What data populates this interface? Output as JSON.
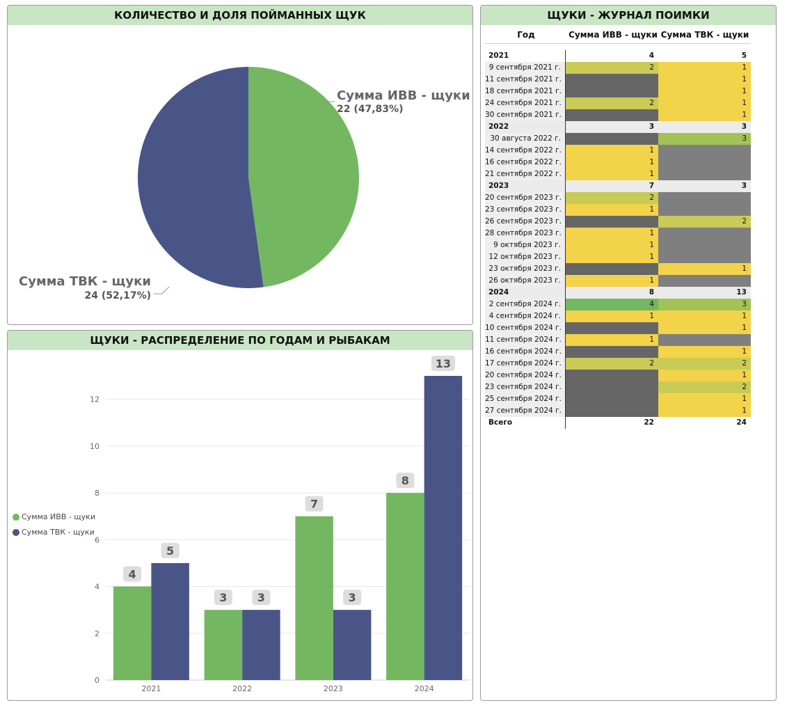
{
  "colors": {
    "ivv": "#73b761",
    "tvk": "#4a5587",
    "header_bg": "#c8e6c4",
    "cell_yellow": "#f3d34a",
    "cell_olive": "#c9cb56",
    "cell_lightgreen": "#a2c256",
    "cell_green": "#73b761",
    "cell_darkgray": "#666666",
    "cell_gray": "#7f7f7f"
  },
  "pie_panel": {
    "title": "КОЛИЧЕСТВО И ДОЛЯ ПОЙМАННЫХ ЩУК",
    "slices": [
      {
        "label": "Сумма ИВВ - щуки",
        "value": 22,
        "detail": "22 (47,83%)"
      },
      {
        "label": "Сумма ТВК - щуки",
        "value": 24,
        "detail": "24 (52,17%)"
      }
    ]
  },
  "bar_panel": {
    "title": "ЩУКИ - РАСПРЕДЕЛЕНИЕ ПО ГОДАМ И РЫБАКАМ",
    "legend": [
      "Сумма ИВВ - щуки",
      "Сумма ТВК - щуки"
    ]
  },
  "chart_data": [
    {
      "type": "pie",
      "title": "КОЛИЧЕСТВО И ДОЛЯ ПОЙМАННЫХ ЩУК",
      "categories": [
        "Сумма ИВВ - щуки",
        "Сумма ТВК - щуки"
      ],
      "values": [
        22,
        24
      ],
      "percent_labels": [
        "47,83%",
        "52,17%"
      ]
    },
    {
      "type": "bar",
      "title": "ЩУКИ - РАСПРЕДЕЛЕНИЕ ПО ГОДАМ И РЫБАКАМ",
      "categories": [
        "2021",
        "2022",
        "2023",
        "2024"
      ],
      "series": [
        {
          "name": "Сумма ИВВ - щуки",
          "values": [
            4,
            3,
            7,
            8
          ]
        },
        {
          "name": "Сумма ТВК - щуки",
          "values": [
            5,
            3,
            3,
            13
          ]
        }
      ],
      "yticks": [
        0,
        2,
        4,
        6,
        8,
        10,
        12
      ],
      "ylim": [
        0,
        13
      ],
      "grid": true,
      "legend": "left"
    }
  ],
  "table_panel": {
    "title": "ЩУКИ - ЖУРНАЛ ПОИМКИ",
    "columns": [
      "Год",
      "Сумма ИВВ - щуки",
      "Сумма ТВК - щуки"
    ],
    "rows": [
      {
        "kind": "year",
        "label": "2021",
        "ivv": "4",
        "tvk": "5"
      },
      {
        "kind": "date",
        "label": "9 сентября 2021 г.",
        "ivv": "2",
        "tvk": "1",
        "ivv_c": "cell_olive",
        "tvk_c": "cell_yellow"
      },
      {
        "kind": "date",
        "label": "11 сентября 2021 г.",
        "ivv": "",
        "tvk": "1",
        "ivv_c": "cell_darkgray",
        "tvk_c": "cell_yellow"
      },
      {
        "kind": "date",
        "label": "18 сентября 2021 г.",
        "ivv": "",
        "tvk": "1",
        "ivv_c": "cell_darkgray",
        "tvk_c": "cell_yellow"
      },
      {
        "kind": "date",
        "label": "24 сентября 2021 г.",
        "ivv": "2",
        "tvk": "1",
        "ivv_c": "cell_olive",
        "tvk_c": "cell_yellow"
      },
      {
        "kind": "date",
        "label": "30 сентября 2021 г.",
        "ivv": "",
        "tvk": "1",
        "ivv_c": "cell_darkgray",
        "tvk_c": "cell_yellow"
      },
      {
        "kind": "year",
        "label": "2022",
        "ivv": "3",
        "tvk": "3"
      },
      {
        "kind": "date",
        "label": "30 августа 2022 г.",
        "ivv": "",
        "tvk": "3",
        "ivv_c": "cell_darkgray",
        "tvk_c": "cell_lightgreen"
      },
      {
        "kind": "date",
        "label": "14 сентября 2022 г.",
        "ivv": "1",
        "tvk": "",
        "ivv_c": "cell_yellow",
        "tvk_c": "cell_gray"
      },
      {
        "kind": "date",
        "label": "16 сентября 2022 г.",
        "ivv": "1",
        "tvk": "",
        "ivv_c": "cell_yellow",
        "tvk_c": "cell_gray"
      },
      {
        "kind": "date",
        "label": "21 сентября 2022 г.",
        "ivv": "1",
        "tvk": "",
        "ivv_c": "cell_yellow",
        "tvk_c": "cell_gray"
      },
      {
        "kind": "year",
        "label": "2023",
        "ivv": "7",
        "tvk": "3"
      },
      {
        "kind": "date",
        "label": "20 сентября 2023 г.",
        "ivv": "2",
        "tvk": "",
        "ivv_c": "cell_olive",
        "tvk_c": "cell_gray"
      },
      {
        "kind": "date",
        "label": "23 сентября 2023 г.",
        "ivv": "1",
        "tvk": "",
        "ivv_c": "cell_yellow",
        "tvk_c": "cell_gray"
      },
      {
        "kind": "date",
        "label": "26 сентября 2023 г.",
        "ivv": "",
        "tvk": "2",
        "ivv_c": "cell_darkgray",
        "tvk_c": "cell_olive"
      },
      {
        "kind": "date",
        "label": "28 сентября 2023 г.",
        "ivv": "1",
        "tvk": "",
        "ivv_c": "cell_yellow",
        "tvk_c": "cell_gray"
      },
      {
        "kind": "date",
        "label": "9 октября 2023 г.",
        "ivv": "1",
        "tvk": "",
        "ivv_c": "cell_yellow",
        "tvk_c": "cell_gray"
      },
      {
        "kind": "date",
        "label": "12 октября 2023 г.",
        "ivv": "1",
        "tvk": "",
        "ivv_c": "cell_yellow",
        "tvk_c": "cell_gray"
      },
      {
        "kind": "date",
        "label": "23 октября 2023 г.",
        "ivv": "",
        "tvk": "1",
        "ivv_c": "cell_darkgray",
        "tvk_c": "cell_yellow"
      },
      {
        "kind": "date",
        "label": "26 октября 2023 г.",
        "ivv": "1",
        "tvk": "",
        "ivv_c": "cell_yellow",
        "tvk_c": "cell_gray"
      },
      {
        "kind": "year",
        "label": "2024",
        "ivv": "8",
        "tvk": "13"
      },
      {
        "kind": "date",
        "label": "2 сентября 2024 г.",
        "ivv": "4",
        "tvk": "3",
        "ivv_c": "cell_green",
        "tvk_c": "cell_lightgreen"
      },
      {
        "kind": "date",
        "label": "4 сентября 2024 г.",
        "ivv": "1",
        "tvk": "1",
        "ivv_c": "cell_yellow",
        "tvk_c": "cell_yellow"
      },
      {
        "kind": "date",
        "label": "10 сентября 2024 г.",
        "ivv": "",
        "tvk": "1",
        "ivv_c": "cell_darkgray",
        "tvk_c": "cell_yellow"
      },
      {
        "kind": "date",
        "label": "11 сентября 2024 г.",
        "ivv": "1",
        "tvk": "",
        "ivv_c": "cell_yellow",
        "tvk_c": "cell_gray"
      },
      {
        "kind": "date",
        "label": "16 сентября 2024 г.",
        "ivv": "",
        "tvk": "1",
        "ivv_c": "cell_darkgray",
        "tvk_c": "cell_yellow"
      },
      {
        "kind": "date",
        "label": "17 сентября 2024 г.",
        "ivv": "2",
        "tvk": "2",
        "ivv_c": "cell_olive",
        "tvk_c": "cell_olive"
      },
      {
        "kind": "date",
        "label": "20 сентября 2024 г.",
        "ivv": "",
        "tvk": "1",
        "ivv_c": "cell_darkgray",
        "tvk_c": "cell_yellow"
      },
      {
        "kind": "date",
        "label": "23 сентября 2024 г.",
        "ivv": "",
        "tvk": "2",
        "ivv_c": "cell_darkgray",
        "tvk_c": "cell_olive"
      },
      {
        "kind": "date",
        "label": "25 сентября 2024 г.",
        "ivv": "",
        "tvk": "1",
        "ivv_c": "cell_darkgray",
        "tvk_c": "cell_yellow"
      },
      {
        "kind": "date",
        "label": "27 сентября 2024 г.",
        "ivv": "",
        "tvk": "1",
        "ivv_c": "cell_darkgray",
        "tvk_c": "cell_yellow"
      },
      {
        "kind": "total",
        "label": "Всего",
        "ivv": "22",
        "tvk": "24"
      }
    ]
  }
}
